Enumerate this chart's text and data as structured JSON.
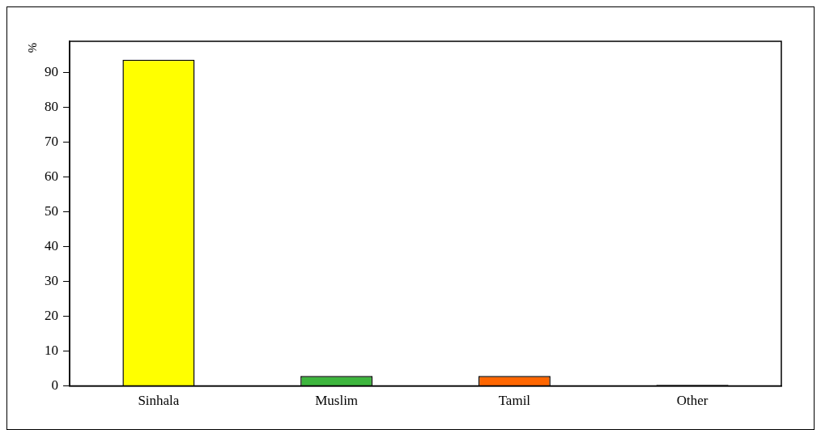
{
  "chart_data": {
    "type": "bar",
    "ylabel": "%",
    "categories": [
      "Sinhala",
      "Muslim",
      "Tamil",
      "Other"
    ],
    "values": [
      93.7,
      2.9,
      2.9,
      0.3
    ],
    "colors": [
      "#ffff00",
      "#3db53d",
      "#ff6600",
      "#000000"
    ],
    "ylim": [
      0,
      99
    ],
    "yticks": [
      0,
      10,
      20,
      30,
      40,
      50,
      60,
      70,
      80,
      90
    ],
    "grid": false,
    "legend": false
  }
}
